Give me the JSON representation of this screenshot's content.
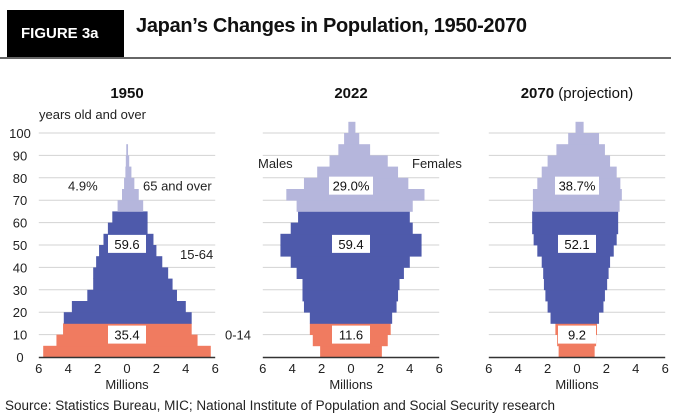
{
  "header": {
    "figure_label": "FIGURE 3a",
    "title": "Japan’s Changes in Population, 1950-2070"
  },
  "source": "Source: Statistics Bureau, MIC; National Institute of Population and Social Security research",
  "colors": {
    "age_0_14": "#f07b60",
    "age_15_64": "#4e5aab",
    "age_65_over": "#b5b6dc",
    "grid": "#d3d3d3",
    "axis": "#333333"
  },
  "chart_data": [
    {
      "type": "bar",
      "orientation": "population-pyramid",
      "title": "1950",
      "title_suffix": "",
      "ylabel": "years old and over",
      "xlabel": "Millions",
      "xlim": [
        -6,
        6
      ],
      "ylim": [
        0,
        100
      ],
      "x_ticks": [
        "6",
        "4",
        "2",
        "0",
        "2",
        "4",
        "6"
      ],
      "y_ticks": [
        "0",
        "10",
        "20",
        "30",
        "40",
        "50",
        "60",
        "70",
        "80",
        "90",
        "100"
      ],
      "grid": true,
      "age_bins_start": [
        0,
        5,
        10,
        15,
        20,
        25,
        30,
        35,
        40,
        45,
        50,
        55,
        60,
        65,
        70,
        75,
        80,
        85,
        90,
        95,
        100
      ],
      "males": [
        5.7,
        4.8,
        4.35,
        4.3,
        3.75,
        2.7,
        2.3,
        2.3,
        2.1,
        1.9,
        1.6,
        1.3,
        1.0,
        0.64,
        0.34,
        0.2,
        0.11,
        0.08,
        0.05,
        0,
        0
      ],
      "females": [
        5.7,
        4.8,
        4.4,
        4.4,
        4.0,
        3.4,
        3.1,
        2.8,
        2.4,
        2.0,
        1.8,
        1.4,
        1.4,
        1.1,
        0.8,
        0.5,
        0.3,
        0.15,
        0.07,
        0,
        0
      ],
      "group_values": {
        "age_0_14": "35.4",
        "age_15_64": "59.6",
        "age_65_over": "4.9%"
      },
      "annotations": {
        "old": "65 and over",
        "working": "15-64",
        "young": "0-14"
      }
    },
    {
      "type": "bar",
      "orientation": "population-pyramid",
      "title": "2022",
      "title_suffix": "",
      "xlabel": "Millions",
      "xlim": [
        -6,
        6
      ],
      "ylim": [
        0,
        100
      ],
      "x_ticks": [
        "6",
        "4",
        "2",
        "0",
        "2",
        "4",
        "6"
      ],
      "grid": true,
      "age_bins_start": [
        0,
        5,
        10,
        15,
        20,
        25,
        30,
        35,
        40,
        45,
        50,
        55,
        60,
        65,
        70,
        75,
        80,
        85,
        90,
        95,
        100
      ],
      "males": [
        2.1,
        2.6,
        2.8,
        2.8,
        3.2,
        3.3,
        3.3,
        3.7,
        4.1,
        4.8,
        4.8,
        4.1,
        3.6,
        3.7,
        4.4,
        3.2,
        2.3,
        1.46,
        0.86,
        0.47,
        0.18
      ],
      "females": [
        2.1,
        2.5,
        2.7,
        2.8,
        3.1,
        3.2,
        3.3,
        3.6,
        4.0,
        4.8,
        4.8,
        4.2,
        4.0,
        4.2,
        5.0,
        3.9,
        3.2,
        2.5,
        1.3,
        0.56,
        0.3
      ],
      "group_values": {
        "age_0_14": "11.6",
        "age_15_64": "59.4",
        "age_65_over": "29.0%"
      },
      "legend": {
        "left": "Males",
        "right": "Females"
      }
    },
    {
      "type": "bar",
      "orientation": "population-pyramid",
      "title": "2070",
      "title_suffix": "(projection)",
      "xlabel": "Millions",
      "xlim": [
        -6,
        6
      ],
      "ylim": [
        0,
        100
      ],
      "x_ticks": [
        "6",
        "4",
        "2",
        "0",
        "2",
        "4",
        "6"
      ],
      "grid": true,
      "age_bins_start": [
        0,
        5,
        10,
        15,
        20,
        25,
        30,
        35,
        40,
        45,
        50,
        55,
        60,
        65,
        70,
        75,
        80,
        85,
        90,
        95,
        100
      ],
      "males": [
        1.25,
        1.35,
        1.47,
        1.8,
        2.0,
        2.15,
        2.25,
        2.3,
        2.4,
        2.7,
        2.95,
        3.05,
        3.05,
        3.0,
        3.0,
        2.7,
        2.4,
        2.0,
        1.4,
        0.6,
        0.1
      ],
      "females": [
        1.2,
        1.3,
        1.36,
        1.5,
        1.8,
        1.9,
        2.05,
        2.15,
        2.25,
        2.5,
        2.7,
        2.8,
        2.8,
        2.9,
        3.05,
        2.95,
        2.7,
        2.25,
        1.9,
        1.5,
        0.45
      ],
      "group_values": {
        "age_0_14": "9.2",
        "age_15_64": "52.1",
        "age_65_over": "38.7%"
      }
    }
  ]
}
